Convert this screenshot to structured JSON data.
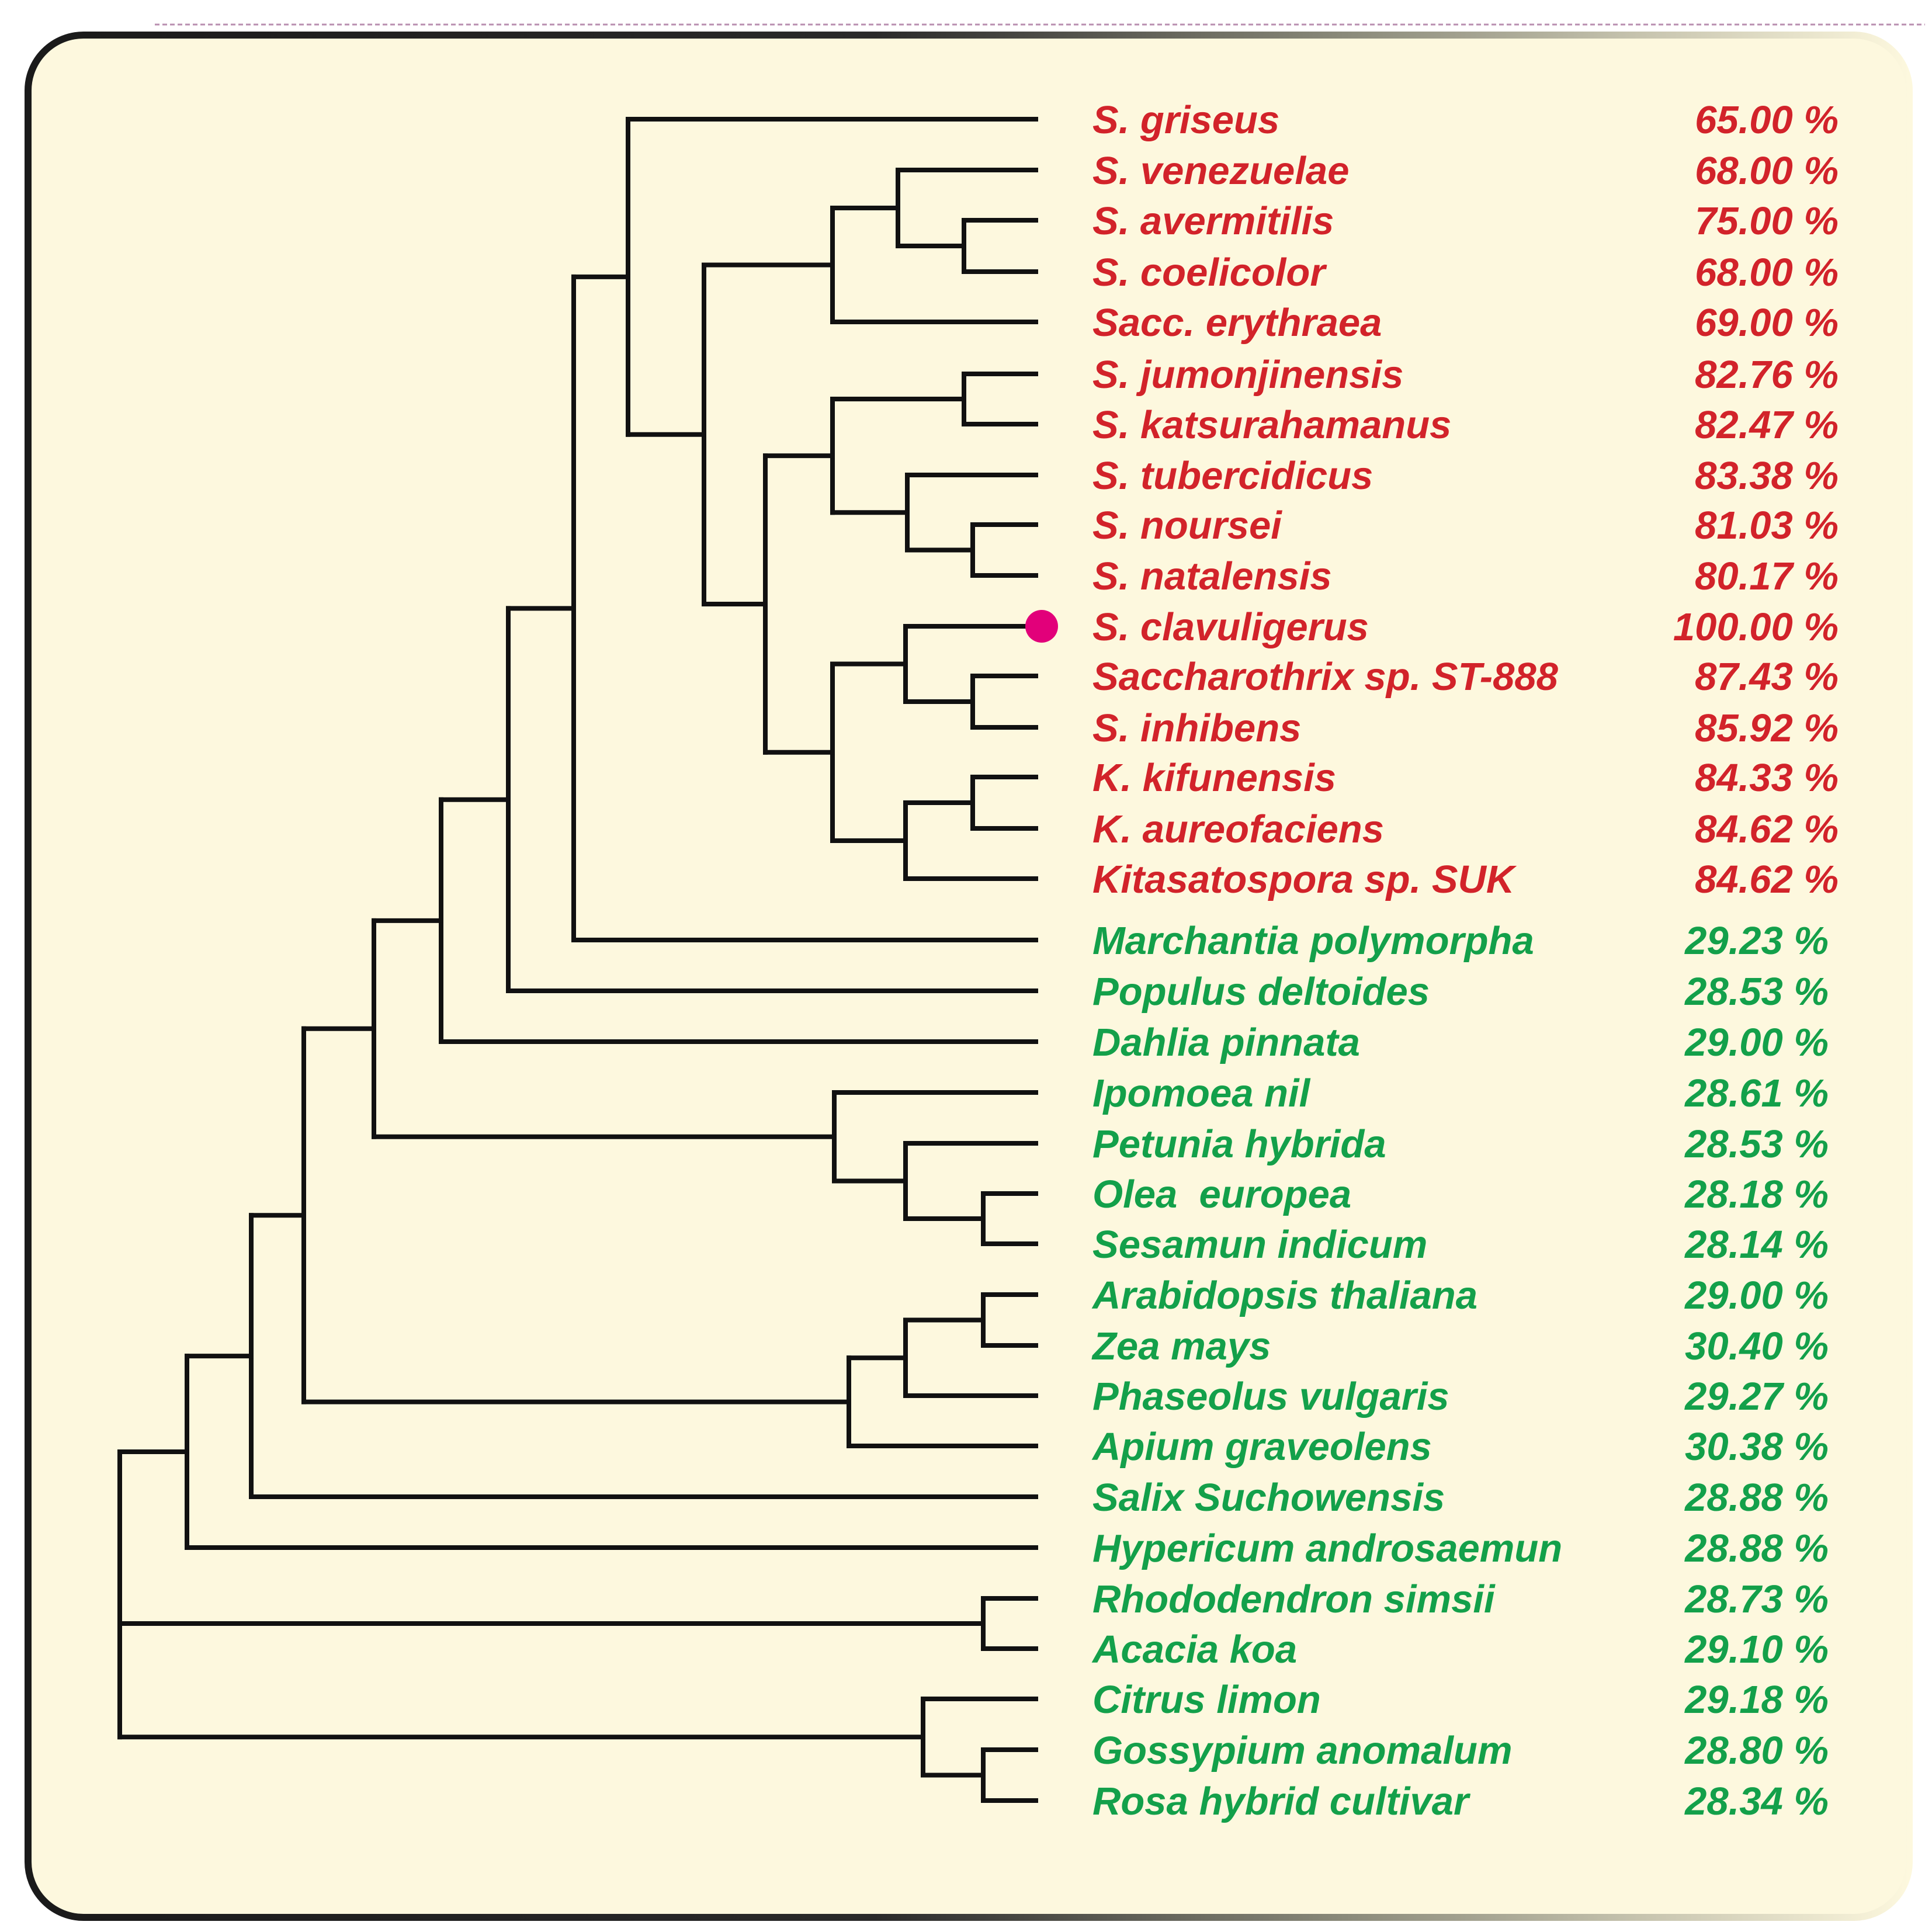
{
  "colors": {
    "background_panel": "#fdf8de",
    "branch": "#111111",
    "bacteria_text": "#d2232a",
    "plant_text": "#13a04a",
    "marker": "#e2007a"
  },
  "taxa": [
    {
      "name": "S. griseus",
      "identity": "65.00 %",
      "group": "bacteria"
    },
    {
      "name": "S. venezuelae",
      "identity": "68.00 %",
      "group": "bacteria"
    },
    {
      "name": "S. avermitilis",
      "identity": "75.00 %",
      "group": "bacteria"
    },
    {
      "name": "S. coelicolor",
      "identity": "68.00 %",
      "group": "bacteria"
    },
    {
      "name": "Sacc. erythraea",
      "identity": "69.00 %",
      "group": "bacteria"
    },
    {
      "name": "S. jumonjinensis",
      "identity": "82.76 %",
      "group": "bacteria"
    },
    {
      "name": "S. katsurahamanus",
      "identity": "82.47 %",
      "group": "bacteria"
    },
    {
      "name": "S. tubercidicus",
      "identity": "83.38 %",
      "group": "bacteria"
    },
    {
      "name": "S. noursei",
      "identity": "81.03 %",
      "group": "bacteria"
    },
    {
      "name": "S. natalensis",
      "identity": "80.17 %",
      "group": "bacteria"
    },
    {
      "name": "S. clavuligerus",
      "identity": "100.00 %",
      "group": "bacteria",
      "marked": true
    },
    {
      "name": "Saccharothrix sp. ST-888",
      "identity": "87.43 %",
      "group": "bacteria"
    },
    {
      "name": "S. inhibens",
      "identity": "85.92 %",
      "group": "bacteria"
    },
    {
      "name": "K. kifunensis",
      "identity": "84.33 %",
      "group": "bacteria"
    },
    {
      "name": "K. aureofaciens",
      "identity": "84.62 %",
      "group": "bacteria"
    },
    {
      "name": "Kitasatospora sp. SUK",
      "identity": "84.62 %",
      "group": "bacteria"
    },
    {
      "name": "Marchantia polymorpha",
      "identity": "29.23 %",
      "group": "plant"
    },
    {
      "name": "Populus deltoides",
      "identity": "28.53 %",
      "group": "plant"
    },
    {
      "name": "Dahlia pinnata",
      "identity": "29.00 %",
      "group": "plant"
    },
    {
      "name": "Ipomoea nil",
      "identity": "28.61 %",
      "group": "plant"
    },
    {
      "name": "Petunia hybrida",
      "identity": "28.53 %",
      "group": "plant"
    },
    {
      "name": "Olea  europea",
      "identity": "28.18 %",
      "group": "plant"
    },
    {
      "name": "Sesamun indicum",
      "identity": "28.14 %",
      "group": "plant"
    },
    {
      "name": "Arabidopsis thaliana",
      "identity": "29.00 %",
      "group": "plant"
    },
    {
      "name": "Zea mays",
      "identity": "30.40 %",
      "group": "plant"
    },
    {
      "name": "Phaseolus vulgaris",
      "identity": "29.27 %",
      "group": "plant"
    },
    {
      "name": "Apium graveolens",
      "identity": "30.38 %",
      "group": "plant"
    },
    {
      "name": "Salix Suchowensis",
      "identity": "28.88 %",
      "group": "plant"
    },
    {
      "name": "Hypericum androsaemun",
      "identity": "28.88 %",
      "group": "plant"
    },
    {
      "name": "Rhododendron simsii",
      "identity": "28.73 %",
      "group": "plant"
    },
    {
      "name": "Acacia koa",
      "identity": "29.10 %",
      "group": "plant"
    },
    {
      "name": "Citrus limon",
      "identity": "29.18 %",
      "group": "plant"
    },
    {
      "name": "Gossypium anomalum",
      "identity": "28.80 %",
      "group": "plant"
    },
    {
      "name": "Rosa hybrid cultivar",
      "identity": "28.34 %",
      "group": "plant"
    }
  ]
}
